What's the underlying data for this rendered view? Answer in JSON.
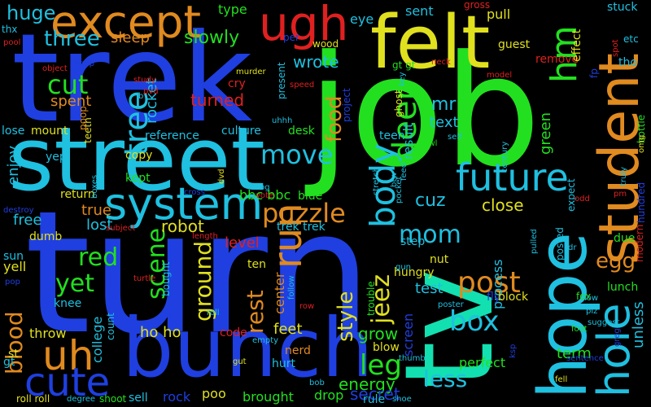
{
  "words": [
    {
      "text": "trek",
      "color": "#1f3fe0"
    },
    {
      "text": "turn",
      "color": "#1f3fe0"
    },
    {
      "text": "job",
      "color": "#22e01f"
    },
    {
      "text": "tv",
      "color": "#12e0b0"
    },
    {
      "text": "street",
      "color": "#1fc0e0"
    },
    {
      "text": "bunch",
      "color": "#1f3fe0"
    },
    {
      "text": "felt",
      "color": "#e0e01f"
    },
    {
      "text": "except",
      "color": "#e08a1f"
    },
    {
      "text": "hope",
      "color": "#1fc0e0"
    },
    {
      "text": "student",
      "color": "#e08a1f"
    },
    {
      "text": "system",
      "color": "#1fc0e0"
    },
    {
      "text": "future",
      "color": "#1fc0e0"
    },
    {
      "text": "ugh",
      "color": "#e02020"
    },
    {
      "text": "uh",
      "color": "#e08a1f"
    },
    {
      "text": "cute",
      "color": "#1f3fe0"
    },
    {
      "text": "hole",
      "color": "#1fc0e0"
    },
    {
      "text": "run",
      "color": "#e08a1f"
    },
    {
      "text": "hm",
      "color": "#22e01f"
    },
    {
      "text": "body",
      "color": "#1fc0e0"
    },
    {
      "text": "puzzle",
      "color": "#e08a1f"
    },
    {
      "text": "deep",
      "color": "#22e01f"
    },
    {
      "text": "tree",
      "color": "#1fc0e0"
    },
    {
      "text": "cut",
      "color": "#22e01f"
    },
    {
      "text": "move",
      "color": "#1fc0e0"
    },
    {
      "text": "post",
      "color": "#e08a1f"
    },
    {
      "text": "box",
      "color": "#1fc0e0"
    },
    {
      "text": "leg",
      "color": "#22e01f"
    },
    {
      "text": "mom",
      "color": "#1fc0e0"
    },
    {
      "text": "jeez",
      "color": "#e0e01f"
    },
    {
      "text": "scene",
      "color": "#22e01f"
    },
    {
      "text": "yet",
      "color": "#22e01f"
    },
    {
      "text": "red",
      "color": "#22e01f"
    },
    {
      "text": "food",
      "color": "#e08a1f"
    },
    {
      "text": "rest",
      "color": "#e08a1f"
    },
    {
      "text": "ground",
      "color": "#e0e01f"
    },
    {
      "text": "style",
      "color": "#e0e01f"
    },
    {
      "text": "blood",
      "color": "#e08a1f"
    },
    {
      "text": "less",
      "color": "#1fc0e0"
    },
    {
      "text": "three",
      "color": "#1fc0e0"
    },
    {
      "text": "egg",
      "color": "#e08a1f"
    },
    {
      "text": "huge",
      "color": "#1fc0e0"
    },
    {
      "text": "slowly",
      "color": "#22e01f"
    },
    {
      "text": "sleep",
      "color": "#e08a1f"
    },
    {
      "text": "rocket",
      "color": "#1fc0e0"
    },
    {
      "text": "turned",
      "color": "#e02020"
    },
    {
      "text": "wrote",
      "color": "#1fc0e0"
    },
    {
      "text": "spent",
      "color": "#e08a1f"
    },
    {
      "text": "enjoy",
      "color": "#1fc0e0"
    },
    {
      "text": "free",
      "color": "#1fc0e0"
    },
    {
      "text": "true",
      "color": "#e08a1f"
    },
    {
      "text": "lost",
      "color": "#1fc0e0"
    },
    {
      "text": "robot",
      "color": "#e0e01f"
    },
    {
      "text": "level",
      "color": "#e02020"
    },
    {
      "text": "bbc bbc",
      "color": "#22e01f"
    },
    {
      "text": "cuz",
      "color": "#1fc0e0"
    },
    {
      "text": "close",
      "color": "#e0e01f"
    },
    {
      "text": "text",
      "color": "#1fc0e0"
    },
    {
      "text": "mr",
      "color": "#1fc0e0"
    },
    {
      "text": "green",
      "color": "#22e01f"
    },
    {
      "text": "result",
      "color": "#1fc0e0"
    },
    {
      "text": "process",
      "color": "#1fc0e0"
    },
    {
      "text": "screen",
      "color": "#1f3fe0"
    },
    {
      "text": "test",
      "color": "#1fc0e0"
    },
    {
      "text": "grow",
      "color": "#22e01f"
    },
    {
      "text": "feet",
      "color": "#e0e01f"
    },
    {
      "text": "center",
      "color": "#e08a1f"
    },
    {
      "text": "ho ho",
      "color": "#e0e01f"
    },
    {
      "text": "college",
      "color": "#1fc0e0"
    },
    {
      "text": "energy",
      "color": "#22e01f"
    },
    {
      "text": "secret",
      "color": "#1f3fe0"
    },
    {
      "text": "unless",
      "color": "#1fc0e0"
    },
    {
      "text": "term",
      "color": "#22e01f"
    },
    {
      "text": "perfect",
      "color": "#22e01f"
    },
    {
      "text": "drop",
      "color": "#22e01f"
    },
    {
      "text": "brought",
      "color": "#22e01f"
    },
    {
      "text": "poo",
      "color": "#e0e01f"
    },
    {
      "text": "rock",
      "color": "#1f3fe0"
    },
    {
      "text": "sell",
      "color": "#1fc0e0"
    },
    {
      "text": "rule",
      "color": "#1fc0e0"
    },
    {
      "text": "nerd",
      "color": "#e08a1f"
    },
    {
      "text": "hurt",
      "color": "#1fc0e0"
    },
    {
      "text": "code",
      "color": "#e02020"
    },
    {
      "text": "throw",
      "color": "#e0e01f"
    },
    {
      "text": "knee",
      "color": "#1fc0e0"
    },
    {
      "text": "yell",
      "color": "#e0e01f"
    },
    {
      "text": "sun",
      "color": "#1fc0e0"
    },
    {
      "text": "dumb",
      "color": "#e0e01f"
    },
    {
      "text": "return",
      "color": "#e0e01f"
    },
    {
      "text": "kept",
      "color": "#22e01f"
    },
    {
      "text": "copy",
      "color": "#e0e01f"
    },
    {
      "text": "reference",
      "color": "#1fc0e0"
    },
    {
      "text": "culture",
      "color": "#1fc0e0"
    },
    {
      "text": "desk",
      "color": "#22e01f"
    },
    {
      "text": "blue",
      "color": "#22e01f"
    },
    {
      "text": "trek trek",
      "color": "#1fc0e0"
    },
    {
      "text": "hungry",
      "color": "#e0e01f"
    },
    {
      "text": "step",
      "color": "#1fc0e0"
    },
    {
      "text": "nut",
      "color": "#e0e01f"
    },
    {
      "text": "fly",
      "color": "#1f3fe0"
    },
    {
      "text": "block",
      "color": "#e0e01f"
    },
    {
      "text": "lunch",
      "color": "#22e01f"
    },
    {
      "text": "due",
      "color": "#22e01f"
    },
    {
      "text": "blow",
      "color": "#e0e01f"
    },
    {
      "text": "trouble",
      "color": "#22e01f"
    },
    {
      "text": "ten",
      "color": "#e0e01f"
    },
    {
      "text": "bought",
      "color": "#1fc0e0"
    },
    {
      "text": "count",
      "color": "#1fc0e0"
    },
    {
      "text": "roll roll",
      "color": "#e0e01f"
    },
    {
      "text": "shoot",
      "color": "#22e01f"
    },
    {
      "text": "st",
      "color": "#e0e01f"
    },
    {
      "text": "gt",
      "color": "#1fc0e0"
    },
    {
      "text": "eye",
      "color": "#1fc0e0"
    },
    {
      "text": "sent",
      "color": "#1fc0e0"
    },
    {
      "text": "pull",
      "color": "#e0e01f"
    },
    {
      "text": "type",
      "color": "#22e01f"
    },
    {
      "text": "wood",
      "color": "#e0e01f"
    },
    {
      "text": "per",
      "color": "#1f3fe0"
    },
    {
      "text": "gross",
      "color": "#e02020"
    },
    {
      "text": "stuck",
      "color": "#1fc0e0"
    },
    {
      "text": "etc",
      "color": "#1fc0e0"
    },
    {
      "text": "tho",
      "color": "#1fc0e0"
    },
    {
      "text": "guest",
      "color": "#e0e01f"
    },
    {
      "text": "remove",
      "color": "#e02020"
    },
    {
      "text": "effect",
      "color": "#e0e01f"
    },
    {
      "text": "fp",
      "color": "#1f3fe0"
    },
    {
      "text": "gt gt",
      "color": "#22e01f"
    },
    {
      "text": "em",
      "color": "#22e01f"
    },
    {
      "text": "present",
      "color": "#1fc0e0"
    },
    {
      "text": "cry",
      "color": "#e02020"
    },
    {
      "text": "murder",
      "color": "#e0e01f"
    },
    {
      "text": "teen",
      "color": "#1fc0e0"
    },
    {
      "text": "lose",
      "color": "#1fc0e0"
    },
    {
      "text": "mount",
      "color": "#e0e01f"
    },
    {
      "text": "yep",
      "color": "#1fc0e0"
    },
    {
      "text": "teeth",
      "color": "#e0e01f"
    },
    {
      "text": "poop",
      "color": "#e08a1f"
    },
    {
      "text": "thx",
      "color": "#1fc0e0"
    },
    {
      "text": "pool",
      "color": "#e02020"
    },
    {
      "text": "vs",
      "color": "#22e01f"
    },
    {
      "text": "expect",
      "color": "#1fc0e0"
    },
    {
      "text": "posted",
      "color": "#1fc0e0"
    },
    {
      "text": "modern",
      "color": "#e02020"
    },
    {
      "text": "bottle",
      "color": "#22e01f"
    },
    {
      "text": "hundred",
      "color": "#1f3fe0"
    },
    {
      "text": "fox",
      "color": "#22e01f"
    },
    {
      "text": "low",
      "color": "#1fc0e0"
    },
    {
      "text": "plz",
      "color": "#1fc0e0"
    },
    {
      "text": "suggest",
      "color": "#1fc0e0"
    },
    {
      "text": "foot",
      "color": "#22e01f"
    },
    {
      "text": "fell",
      "color": "#e0e01f"
    },
    {
      "text": "ksp",
      "color": "#1f3fe0"
    },
    {
      "text": "sentence",
      "color": "#1f3fe0"
    },
    {
      "text": "gun",
      "color": "#1fc0e0"
    },
    {
      "text": "stretch",
      "color": "#1fc0e0"
    },
    {
      "text": "pocket",
      "color": "#1fc0e0"
    },
    {
      "text": "century",
      "color": "#1fc0e0"
    },
    {
      "text": "truly",
      "color": "#1fc0e0"
    },
    {
      "text": "odd",
      "color": "#e02020"
    },
    {
      "text": "pm",
      "color": "#e02020"
    },
    {
      "text": "omg",
      "color": "#e0e01f"
    },
    {
      "text": "dr",
      "color": "#1fc0e0"
    },
    {
      "text": "pulled",
      "color": "#1fc0e0"
    },
    {
      "text": "self",
      "color": "#1fc0e0"
    },
    {
      "text": "bowl",
      "color": "#22e01f"
    },
    {
      "text": "ghost",
      "color": "#e0e01f"
    },
    {
      "text": "key",
      "color": "#1fc0e0"
    },
    {
      "text": "project",
      "color": "#1f3fe0"
    },
    {
      "text": "speed",
      "color": "#e02020"
    },
    {
      "text": "uhhh",
      "color": "#1fc0e0"
    },
    {
      "text": "dvd",
      "color": "#e0e01f"
    },
    {
      "text": "vote",
      "color": "#e02020"
    },
    {
      "text": "blog",
      "color": "#1fc0e0"
    },
    {
      "text": "cross",
      "color": "#1f3fe0"
    },
    {
      "text": "study",
      "color": "#e02020"
    },
    {
      "text": "pvd",
      "color": "#e02020"
    },
    {
      "text": "shop",
      "color": "#1f3fe0"
    },
    {
      "text": "object",
      "color": "#e02020"
    },
    {
      "text": "boxes",
      "color": "#1fc0e0"
    },
    {
      "text": "destroy",
      "color": "#1f3fe0"
    },
    {
      "text": "subject",
      "color": "#e02020"
    },
    {
      "text": "length",
      "color": "#e02020"
    },
    {
      "text": "turtle",
      "color": "#e02020"
    },
    {
      "text": "pop",
      "color": "#1f3fe0"
    },
    {
      "text": "roll",
      "color": "#1fc0e0"
    },
    {
      "text": "follow",
      "color": "#1fc0e0"
    },
    {
      "text": "row",
      "color": "#e02020"
    },
    {
      "text": "empty",
      "color": "#1fc0e0"
    },
    {
      "text": "gut",
      "color": "#e0e01f"
    },
    {
      "text": "bob",
      "color": "#1fc0e0"
    },
    {
      "text": "degree",
      "color": "#1fc0e0"
    },
    {
      "text": "shoe",
      "color": "#1fc0e0"
    },
    {
      "text": "thumb",
      "color": "#1fc0e0"
    },
    {
      "text": "poster",
      "color": "#1fc0e0"
    },
    {
      "text": "btw",
      "color": "#1fc0e0"
    },
    {
      "text": "feed",
      "color": "#1fc0e0"
    },
    {
      "text": "neck",
      "color": "#e02020"
    },
    {
      "text": "model",
      "color": "#e02020"
    },
    {
      "text": "spot",
      "color": "#e02020"
    },
    {
      "text": "greg",
      "color": "#1f3fe0"
    },
    {
      "text": "b",
      "color": "#1fc0e0"
    }
  ]
}
